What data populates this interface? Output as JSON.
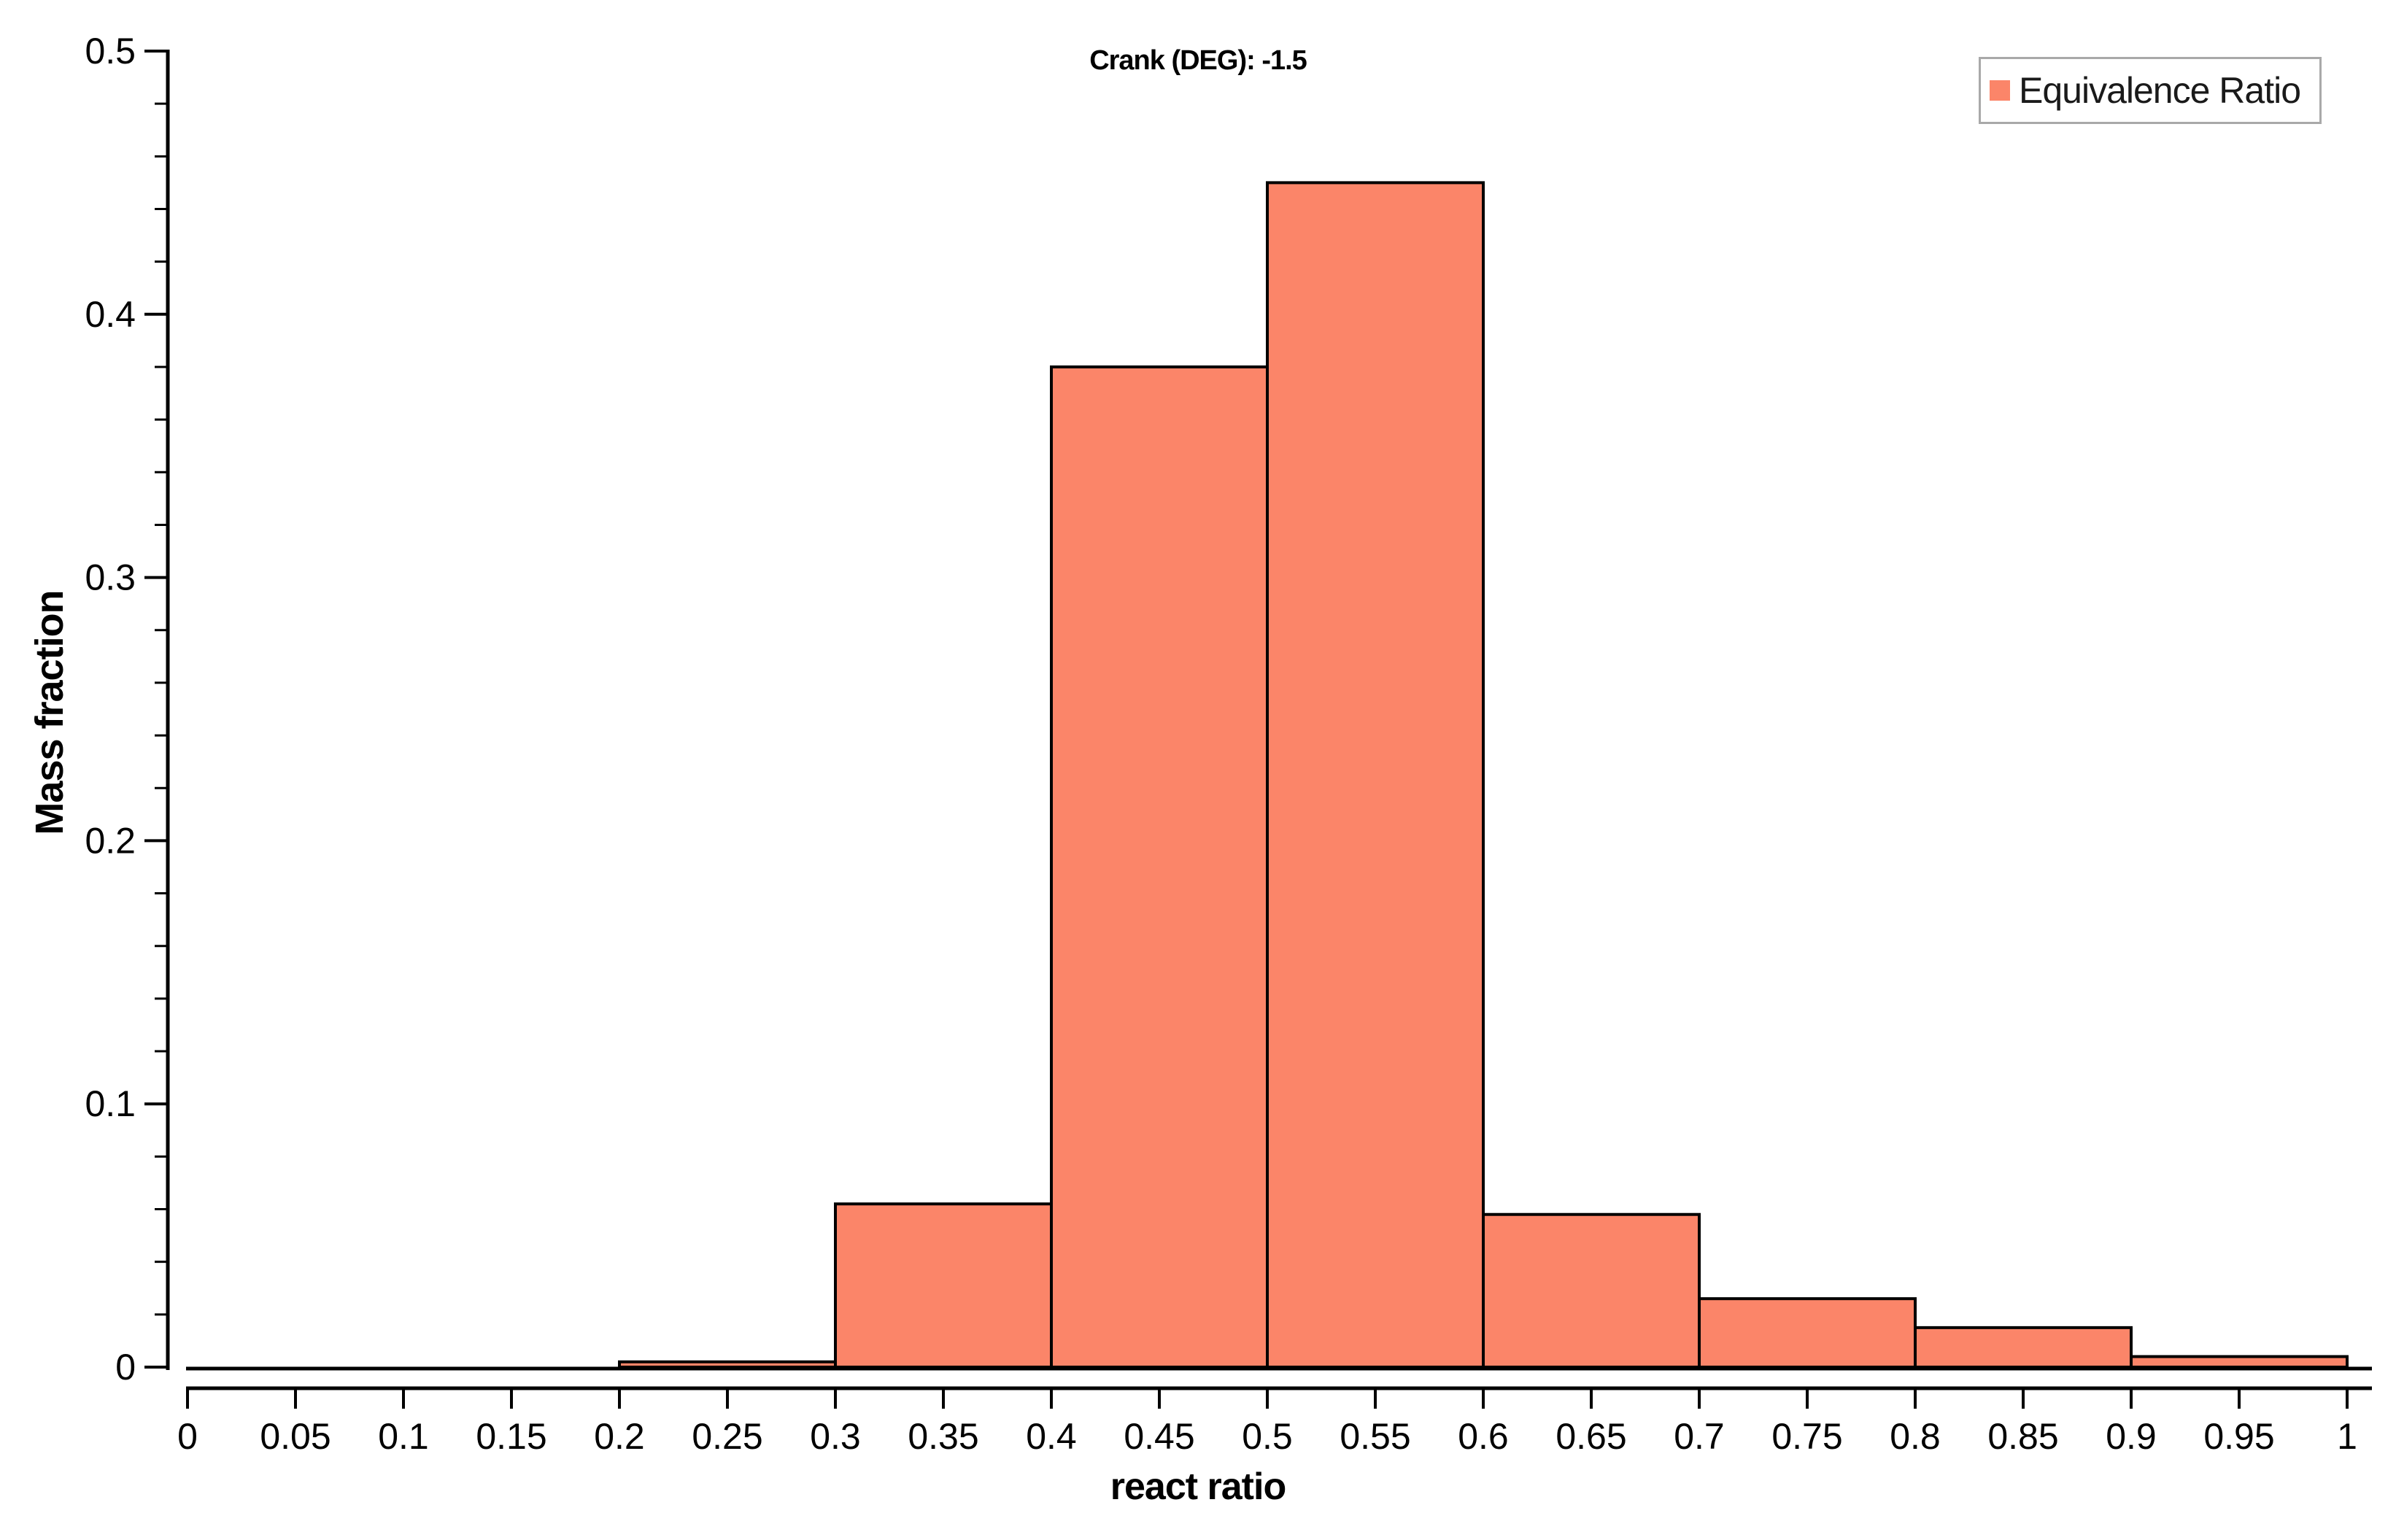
{
  "chart_data": {
    "type": "bar",
    "subtype": "histogram",
    "title": "Crank (DEG): -1.5",
    "xlabel": "react ratio",
    "ylabel": "Mass fraction",
    "legend": {
      "position": "top-right",
      "entries": [
        {
          "label": "Equivalence Ratio",
          "color": "#FB8569"
        }
      ]
    },
    "xlim": [
      0,
      1
    ],
    "ylim": [
      0,
      0.5
    ],
    "grid": false,
    "series": [
      {
        "name": "Equivalence Ratio",
        "bin_edges": [
          0,
          0.1,
          0.2,
          0.3,
          0.4,
          0.5,
          0.6,
          0.7,
          0.8,
          0.9,
          1.0
        ],
        "values": [
          0,
          0,
          0.002,
          0.062,
          0.38,
          0.45,
          0.058,
          0.026,
          0.015,
          0.004
        ]
      }
    ],
    "x_ticks": {
      "values": [
        0,
        0.05,
        0.1,
        0.15,
        0.2,
        0.25,
        0.3,
        0.35,
        0.4,
        0.45,
        0.5,
        0.55,
        0.6,
        0.65,
        0.7,
        0.75,
        0.8,
        0.85,
        0.9,
        0.95,
        1
      ],
      "labels": [
        "0",
        "0.05",
        "0.1",
        "0.15",
        "0.2",
        "0.25",
        "0.3",
        "0.35",
        "0.4",
        "0.45",
        "0.5",
        "0.55",
        "0.6",
        "0.65",
        "0.7",
        "0.75",
        "0.8",
        "0.85",
        "0.9",
        "0.95",
        "1"
      ]
    },
    "y_ticks": {
      "values": [
        0,
        0.1,
        0.2,
        0.3,
        0.4,
        0.5
      ],
      "labels": [
        "0",
        "0.1",
        "0.2",
        "0.3",
        "0.4",
        "0.5"
      ],
      "minor_step": 0.02
    },
    "colors": {
      "bar_fill": "#FB8569",
      "bar_stroke": "#000000",
      "axis": "#000000",
      "text": "#000000",
      "legend_border": "#A9A9A9"
    }
  }
}
